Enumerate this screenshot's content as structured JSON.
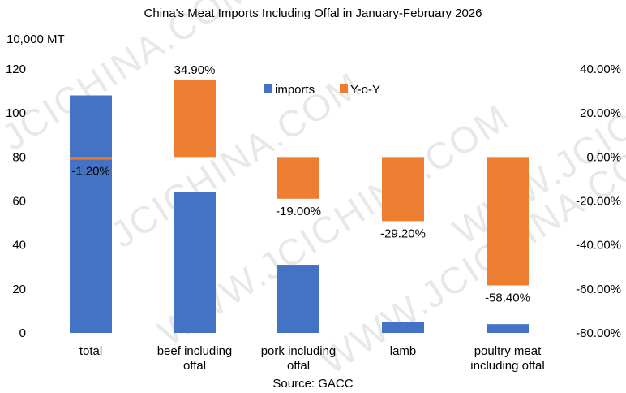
{
  "chart_data": {
    "type": "bar",
    "title": "China's Meat Imports Including Offal in January-February 2026",
    "source": "Source: GACC",
    "y_left_unit": "10,000 MT",
    "categories": [
      {
        "line1": "total",
        "line2": ""
      },
      {
        "line1": "beef including",
        "line2": "offal"
      },
      {
        "line1": "pork including",
        "line2": "offal"
      },
      {
        "line1": "lamb",
        "line2": ""
      },
      {
        "line1": "poultry meat",
        "line2": "including offal"
      }
    ],
    "series": [
      {
        "name": "imports",
        "axis": "left",
        "color": "#4472C4",
        "values": [
          108,
          64,
          31,
          5,
          4
        ]
      },
      {
        "name": "Y-o-Y",
        "axis": "right",
        "color": "#ED7D31",
        "values": [
          -1.2,
          34.9,
          -19.0,
          -29.2,
          -58.4
        ],
        "labels": [
          "-1.20%",
          "34.90%",
          "-19.00%",
          "-29.20%",
          "-58.40%"
        ]
      }
    ],
    "y_left": {
      "min": 0,
      "max": 120,
      "ticks": [
        "0",
        "20",
        "40",
        "60",
        "80",
        "100",
        "120"
      ]
    },
    "y_right": {
      "min": -80,
      "max": 40,
      "ticks": [
        "-80.00%",
        "-60.00%",
        "-40.00%",
        "-20.00%",
        "0.00%",
        "20.00%",
        "40.00%"
      ]
    },
    "legend_position": "top-center",
    "grid": false
  },
  "watermarks": [
    "JCICHINA.COM",
    "JCICHINA.COM",
    "WWW.JCICHINA.COM",
    "WWW.JCICHINA.COM",
    "WWW.JCICHINA"
  ]
}
